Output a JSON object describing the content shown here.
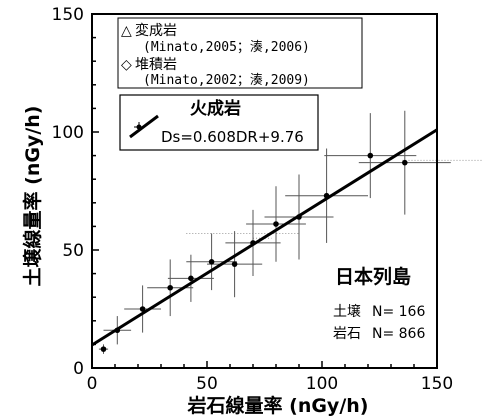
{
  "chart_data": {
    "type": "scatter",
    "xlabel": "岩石線量率 (nGy/h)",
    "ylabel": "土壌線量率 (nGy/h)",
    "xlim": [
      0,
      150
    ],
    "ylim": [
      0,
      150
    ],
    "xticks": [
      "0",
      "50",
      "100",
      "150"
    ],
    "yticks": [
      "0",
      "50",
      "100",
      "150"
    ],
    "legend": {
      "placement": "top-left",
      "entries": [
        {
          "symbol": "△",
          "label": "変成岩",
          "source": "(Minato,2005；湊,2006)"
        },
        {
          "symbol": "◇",
          "label": "堆積岩",
          "source": "(Minato,2002；湊,2009)"
        }
      ]
    },
    "main_series": {
      "name": "火成岩",
      "equation": "Ds=0.608DR+9.76",
      "regression": {
        "slope": 0.608,
        "intercept": 9.76
      },
      "points": [
        {
          "x": 5,
          "y": 8,
          "xerr": 2,
          "yerr": 2
        },
        {
          "x": 11,
          "y": 16,
          "xerr": 6,
          "yerr": 6
        },
        {
          "x": 22,
          "y": 25,
          "xerr": 8,
          "yerr": 10
        },
        {
          "x": 34,
          "y": 34,
          "xerr": 10,
          "yerr": 12
        },
        {
          "x": 43,
          "y": 38,
          "xerr": 10,
          "yerr": 10
        },
        {
          "x": 52,
          "y": 45,
          "xerr": 11,
          "yerr": 12
        },
        {
          "x": 62,
          "y": 44,
          "xerr": 12,
          "yerr": 14
        },
        {
          "x": 70,
          "y": 53,
          "xerr": 12,
          "yerr": 14
        },
        {
          "x": 80,
          "y": 61,
          "xerr": 13,
          "yerr": 16
        },
        {
          "x": 90,
          "y": 64,
          "xerr": 15,
          "yerr": 18
        },
        {
          "x": 102,
          "y": 73,
          "xerr": 18,
          "yerr": 20
        },
        {
          "x": 121,
          "y": 90,
          "xerr": 20,
          "yerr": 18
        },
        {
          "x": 136,
          "y": 87,
          "xerr": 20,
          "yerr": 22
        }
      ]
    },
    "faint_segments": [
      {
        "x1": 70,
        "x2": 78,
        "y": 55
      },
      {
        "x1": 41,
        "x2": 90,
        "y": 57
      },
      {
        "x1": 135,
        "x2": 170,
        "y": 88
      }
    ],
    "annotation": {
      "region": "日本列島",
      "soil_label": "土壌",
      "soil_count": "N= 166",
      "rock_label": "岩石",
      "rock_count": "N= 866"
    },
    "grid": false
  }
}
